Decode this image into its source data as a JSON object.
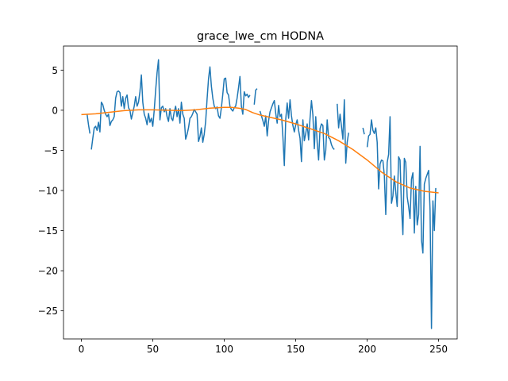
{
  "chart_data": {
    "type": "line",
    "title": "grace_lwe_cm HODNA",
    "xlabel": "",
    "ylabel": "",
    "xlim": [
      -12.5,
      263
    ],
    "ylim": [
      -28.5,
      8
    ],
    "xticks": [
      0,
      50,
      100,
      150,
      200,
      250
    ],
    "yticks": [
      5,
      0,
      -5,
      -10,
      -15,
      -20,
      -25
    ],
    "ytick_labels": [
      "5",
      "0",
      "−5",
      "−10",
      "−15",
      "−20",
      "−25"
    ],
    "grid": false,
    "legend": "none",
    "series": [
      {
        "color": "#1f77b4",
        "points": [
          [
            4,
            -0.5
          ],
          [
            5,
            -1.8
          ],
          [
            6,
            -2.9
          ],
          null,
          [
            7,
            -4.9
          ],
          [
            8,
            -3.5
          ],
          [
            9,
            -2.2
          ],
          [
            10,
            -2.0
          ],
          [
            11,
            -2.5
          ],
          [
            12,
            -1.5
          ],
          [
            13,
            -2.7
          ],
          [
            14,
            1.0
          ],
          [
            15,
            0.7
          ],
          [
            16,
            0.0
          ],
          [
            17,
            -0.5
          ],
          [
            18,
            -0.8
          ],
          [
            19,
            -0.5
          ],
          [
            20,
            -1.9
          ],
          [
            21,
            -1.4
          ],
          [
            22,
            -1.2
          ],
          [
            23,
            -0.8
          ],
          [
            24,
            1.5
          ],
          [
            25,
            2.3
          ],
          [
            26,
            2.4
          ],
          [
            27,
            2.2
          ],
          [
            28,
            0.5
          ],
          [
            29,
            1.7
          ],
          [
            30,
            0.2
          ],
          [
            31,
            1.5
          ],
          [
            32,
            1.9
          ],
          [
            33,
            0.3
          ],
          [
            34,
            0.0
          ],
          [
            35,
            -1.1
          ],
          [
            36,
            -0.3
          ],
          [
            37,
            0.5
          ],
          [
            38,
            1.7
          ],
          [
            39,
            0.5
          ],
          [
            40,
            1.0
          ],
          [
            41,
            2.3
          ],
          [
            42,
            4.4
          ],
          [
            43,
            1.0
          ],
          [
            44,
            -0.5
          ],
          [
            45,
            -1.0
          ],
          [
            46,
            -1.8
          ],
          [
            47,
            -0.4
          ],
          [
            48,
            -1.5
          ],
          [
            49,
            -1.0
          ],
          [
            50,
            -2.0
          ],
          [
            51,
            0.0
          ],
          [
            52,
            2.5
          ],
          [
            53,
            4.7
          ],
          [
            54,
            6.3
          ],
          [
            55,
            -1.2
          ],
          [
            56,
            0.3
          ],
          [
            57,
            0.5
          ],
          [
            58,
            -0.2
          ],
          [
            59,
            0.2
          ],
          [
            60,
            -0.8
          ],
          [
            61,
            -1.4
          ],
          [
            62,
            0.2
          ],
          [
            63,
            -1.0
          ],
          [
            64,
            -1.3
          ],
          [
            65,
            -0.2
          ],
          [
            66,
            0.5
          ],
          [
            67,
            -0.8
          ],
          [
            68,
            0.2
          ],
          [
            69,
            -1.6
          ],
          [
            70,
            1.0
          ],
          [
            71,
            -0.5
          ],
          [
            72,
            -1.0
          ],
          [
            73,
            -3.6
          ],
          [
            74,
            -3.0
          ],
          [
            75,
            -2.2
          ],
          [
            76,
            -1.0
          ],
          [
            77,
            -0.8
          ],
          [
            78,
            -0.4
          ],
          [
            79,
            0.1
          ],
          [
            80,
            -0.2
          ],
          [
            81,
            -0.5
          ],
          [
            82,
            -3.9
          ],
          [
            83,
            -3.3
          ],
          [
            84,
            -2.2
          ],
          [
            85,
            -4.0
          ],
          [
            86,
            -3.0
          ],
          [
            87,
            -1.4
          ],
          [
            88,
            1.4
          ],
          [
            89,
            3.9
          ],
          [
            90,
            5.4
          ],
          [
            91,
            3.0
          ],
          [
            92,
            1.5
          ],
          [
            93,
            0.5
          ],
          [
            94,
            0.2
          ],
          [
            95,
            0.4
          ],
          [
            96,
            -0.7
          ],
          [
            97,
            -1.0
          ],
          [
            98,
            0.3
          ],
          [
            99,
            2.0
          ],
          [
            100,
            3.9
          ],
          [
            101,
            4.0
          ],
          [
            102,
            2.2
          ],
          [
            103,
            1.9
          ],
          [
            104,
            0.5
          ],
          [
            105,
            0.1
          ],
          [
            106,
            -0.1
          ],
          [
            107,
            0.3
          ],
          [
            108,
            0.5
          ],
          [
            109,
            1.5
          ],
          [
            110,
            2.8
          ],
          [
            111,
            4.2
          ],
          [
            112,
            0.5
          ],
          [
            113,
            -0.5
          ],
          [
            114,
            2.3
          ],
          [
            115,
            1.8
          ],
          [
            116,
            2.0
          ],
          [
            117,
            1.6
          ],
          [
            118,
            1.9
          ],
          null,
          [
            121,
            0.7
          ],
          [
            122,
            2.5
          ],
          [
            123,
            2.7
          ],
          null,
          [
            125,
            -0.1
          ],
          [
            126,
            -0.7
          ],
          [
            127,
            -1.3
          ],
          [
            128,
            -2.0
          ],
          [
            129,
            -0.7
          ],
          [
            130,
            -3.2
          ],
          [
            131,
            -1.3
          ],
          [
            132,
            -0.2
          ],
          [
            133,
            0.3
          ],
          [
            134,
            0.8
          ],
          [
            135,
            1.2
          ],
          [
            136,
            -0.4
          ],
          [
            137,
            -1.6
          ],
          [
            138,
            0.6
          ],
          [
            139,
            -0.8
          ],
          [
            140,
            -0.5
          ],
          [
            141,
            -3.3
          ],
          [
            142,
            -6.9
          ],
          [
            143,
            -1.1
          ],
          [
            144,
            0.9
          ],
          [
            145,
            -1.0
          ],
          [
            146,
            1.3
          ],
          [
            147,
            -0.7
          ],
          [
            148,
            -1.9
          ],
          [
            149,
            -2.7
          ],
          [
            150,
            -1.8
          ],
          [
            151,
            -1.2
          ],
          [
            152,
            -2.5
          ],
          [
            153,
            -3.5
          ],
          [
            154,
            -6.4
          ],
          [
            155,
            -1.2
          ],
          [
            156,
            -3.8
          ],
          [
            157,
            -2.9
          ],
          [
            158,
            -1.7
          ],
          [
            159,
            -3.7
          ],
          [
            160,
            -1.0
          ],
          [
            161,
            1.2
          ],
          [
            162,
            -0.6
          ],
          [
            163,
            -4.8
          ],
          [
            164,
            -0.8
          ],
          [
            165,
            -4.0
          ],
          [
            166,
            -6.2
          ],
          [
            167,
            -2.3
          ],
          [
            168,
            -1.7
          ],
          [
            169,
            -1.9
          ],
          [
            170,
            -6.2
          ],
          [
            171,
            -5.0
          ],
          [
            172,
            -1.2
          ],
          [
            173,
            -3.4
          ],
          [
            174,
            -3.6
          ],
          [
            175,
            -4.3
          ],
          [
            176,
            -4.7
          ],
          [
            177,
            -4.9
          ],
          null,
          [
            179,
            0.8
          ],
          [
            180,
            -2.2
          ],
          [
            181,
            -0.5
          ],
          [
            182,
            -2.0
          ],
          [
            183,
            -3.6
          ],
          [
            184,
            1.3
          ],
          [
            185,
            -6.6
          ],
          [
            186,
            -4.0
          ],
          [
            187,
            -2.8
          ],
          null,
          [
            197,
            -2.2
          ],
          [
            198,
            -3.0
          ],
          null,
          [
            200,
            -4.6
          ],
          [
            201,
            -3.2
          ],
          [
            202,
            -3.0
          ],
          [
            203,
            -1.2
          ],
          [
            204,
            -2.5
          ],
          [
            205,
            -2.9
          ],
          [
            206,
            -2.2
          ],
          [
            207,
            -4.0
          ],
          [
            208,
            -9.8
          ],
          [
            209,
            -6.7
          ],
          [
            210,
            -6.2
          ],
          [
            211,
            -6.3
          ],
          [
            212,
            -8.1
          ],
          [
            213,
            -13.0
          ],
          [
            214,
            -6.5
          ],
          [
            215,
            -5.5
          ],
          [
            216,
            -0.8
          ],
          [
            217,
            -11.6
          ],
          [
            218,
            -10.7
          ],
          [
            219,
            -8.2
          ],
          [
            220,
            -10.2
          ],
          [
            221,
            -12.0
          ],
          [
            222,
            -5.8
          ],
          [
            223,
            -6.2
          ],
          [
            224,
            -12.0
          ],
          [
            225,
            -15.5
          ],
          [
            226,
            -6.0
          ],
          [
            227,
            -6.5
          ],
          [
            228,
            -10.8
          ],
          [
            229,
            -12.0
          ],
          [
            230,
            -13.5
          ],
          [
            231,
            -8.6
          ],
          [
            232,
            -7.8
          ],
          [
            233,
            -15.3
          ],
          [
            234,
            -9.5
          ],
          [
            235,
            -14.3
          ],
          [
            236,
            -13.0
          ],
          [
            237,
            -4.5
          ],
          [
            238,
            -16.2
          ],
          [
            239,
            -17.8
          ],
          [
            240,
            -9.2
          ],
          [
            241,
            -8.5
          ],
          [
            242,
            -8.0
          ],
          [
            243,
            -7.5
          ],
          [
            244,
            -12.4
          ],
          [
            245,
            -27.2
          ],
          [
            246,
            -11.3
          ],
          [
            247,
            -15.0
          ],
          [
            248,
            -9.7
          ]
        ]
      },
      {
        "color": "#ff7f0e",
        "points": [
          [
            0,
            -0.55
          ],
          [
            10,
            -0.45
          ],
          [
            20,
            -0.25
          ],
          [
            30,
            -0.05
          ],
          [
            40,
            0.05
          ],
          [
            50,
            0.05
          ],
          [
            60,
            0.0
          ],
          [
            70,
            -0.05
          ],
          [
            80,
            0.05
          ],
          [
            90,
            0.25
          ],
          [
            100,
            0.35
          ],
          [
            105,
            0.35
          ],
          [
            110,
            0.25
          ],
          [
            115,
            0.1
          ],
          [
            120,
            -0.3
          ],
          [
            125,
            -0.6
          ],
          [
            130,
            -0.8
          ],
          [
            140,
            -1.2
          ],
          [
            150,
            -1.7
          ],
          [
            160,
            -2.3
          ],
          [
            170,
            -2.9
          ],
          [
            180,
            -3.8
          ],
          [
            190,
            -4.9
          ],
          [
            200,
            -6.2
          ],
          [
            210,
            -7.7
          ],
          [
            220,
            -8.9
          ],
          [
            230,
            -9.7
          ],
          [
            240,
            -10.1
          ],
          [
            250,
            -10.3
          ]
        ]
      }
    ]
  }
}
